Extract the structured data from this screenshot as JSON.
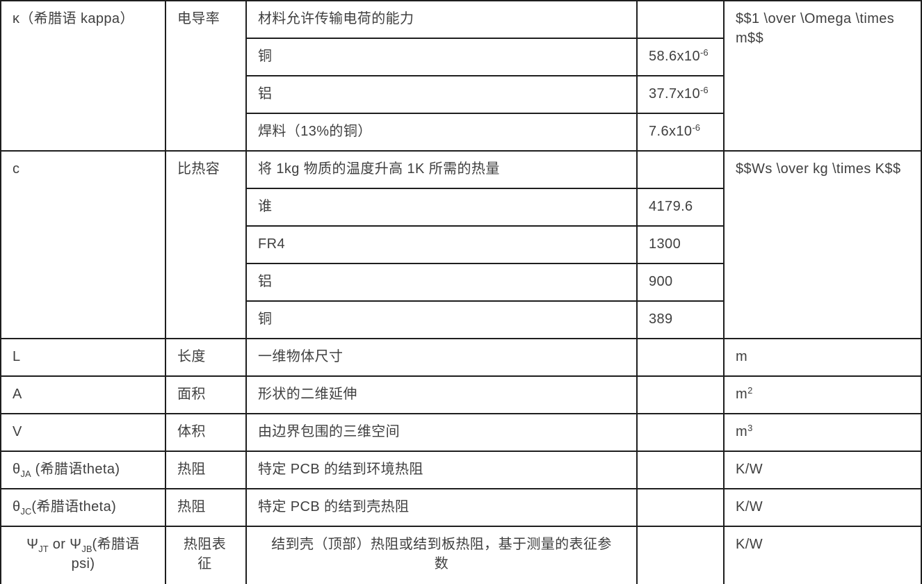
{
  "page": {
    "background_color": "#ffffff",
    "border_color": "#1e1e1e",
    "text_color": "#3f3f3f"
  },
  "table": {
    "blocks": [
      {
        "symbol": [
          {
            "t": "κ（希腊语 kappa）"
          }
        ],
        "name": "电导率",
        "unit": [
          {
            "t": "$$1 \\over \\Omega \\times m$$"
          }
        ],
        "rows": [
          {
            "desc": "材料允许传输电荷的能力",
            "value": []
          },
          {
            "desc": "铜",
            "value": [
              {
                "t": "58.6x10"
              },
              {
                "sup": "-6"
              }
            ]
          },
          {
            "desc": "铝",
            "value": [
              {
                "t": "37.7x10"
              },
              {
                "sup": "-6"
              }
            ]
          },
          {
            "desc": "焊料（13%的铜）",
            "value": [
              {
                "t": "7.6x10"
              },
              {
                "sup": "-6"
              }
            ]
          }
        ]
      },
      {
        "symbol": [
          {
            "t": "c"
          }
        ],
        "name": "比热容",
        "unit": [
          {
            "t": "$$Ws \\over kg \\times K$$"
          }
        ],
        "rows": [
          {
            "desc": "将 1kg 物质的温度升高 1K 所需的热量",
            "value": []
          },
          {
            "desc": "谁",
            "value": [
              {
                "t": "4179.6"
              }
            ]
          },
          {
            "desc": "FR4",
            "value": [
              {
                "t": "1300"
              }
            ]
          },
          {
            "desc": "铝",
            "value": [
              {
                "t": "900"
              }
            ]
          },
          {
            "desc": "铜",
            "value": [
              {
                "t": "389"
              }
            ]
          }
        ]
      },
      {
        "symbol": [
          {
            "t": "L"
          }
        ],
        "name": "长度",
        "unit": [
          {
            "t": "m"
          }
        ],
        "rows": [
          {
            "desc": "一维物体尺寸",
            "value": []
          }
        ]
      },
      {
        "symbol": [
          {
            "t": "A"
          }
        ],
        "name": "面积",
        "unit": [
          {
            "t": "m"
          },
          {
            "sup": "2"
          }
        ],
        "rows": [
          {
            "desc": "形状的二维延伸",
            "value": []
          }
        ]
      },
      {
        "symbol": [
          {
            "t": "V"
          }
        ],
        "name": "体积",
        "unit": [
          {
            "t": "m"
          },
          {
            "sup": "3"
          }
        ],
        "rows": [
          {
            "desc": "由边界包围的三维空间",
            "value": []
          }
        ]
      },
      {
        "symbol": [
          {
            "t": "θ"
          },
          {
            "sub": "JA"
          },
          {
            "t": " (希腊语theta)"
          }
        ],
        "name": "热阻",
        "unit": [
          {
            "t": "K/W"
          }
        ],
        "rows": [
          {
            "desc": "特定 PCB 的结到环境热阻",
            "value": []
          }
        ]
      },
      {
        "symbol": [
          {
            "t": "θ"
          },
          {
            "sub": "JC"
          },
          {
            "t": "(希腊语theta)"
          }
        ],
        "name": "热阻",
        "unit": [
          {
            "t": "K/W"
          }
        ],
        "rows": [
          {
            "desc": "特定 PCB 的结到壳热阻",
            "value": []
          }
        ]
      },
      {
        "symbol": [
          {
            "t": "Ψ"
          },
          {
            "sub": "JT"
          },
          {
            "t": " or Ψ"
          },
          {
            "sub": "JB"
          },
          {
            "t": "(希腊语 psi)"
          }
        ],
        "name": "热阻表征",
        "unit": [
          {
            "t": "K/W"
          }
        ],
        "rows": [
          {
            "desc": "结到壳（顶部）热阻或结到板热阻，基于测量的表征参数",
            "value": []
          }
        ]
      }
    ]
  }
}
